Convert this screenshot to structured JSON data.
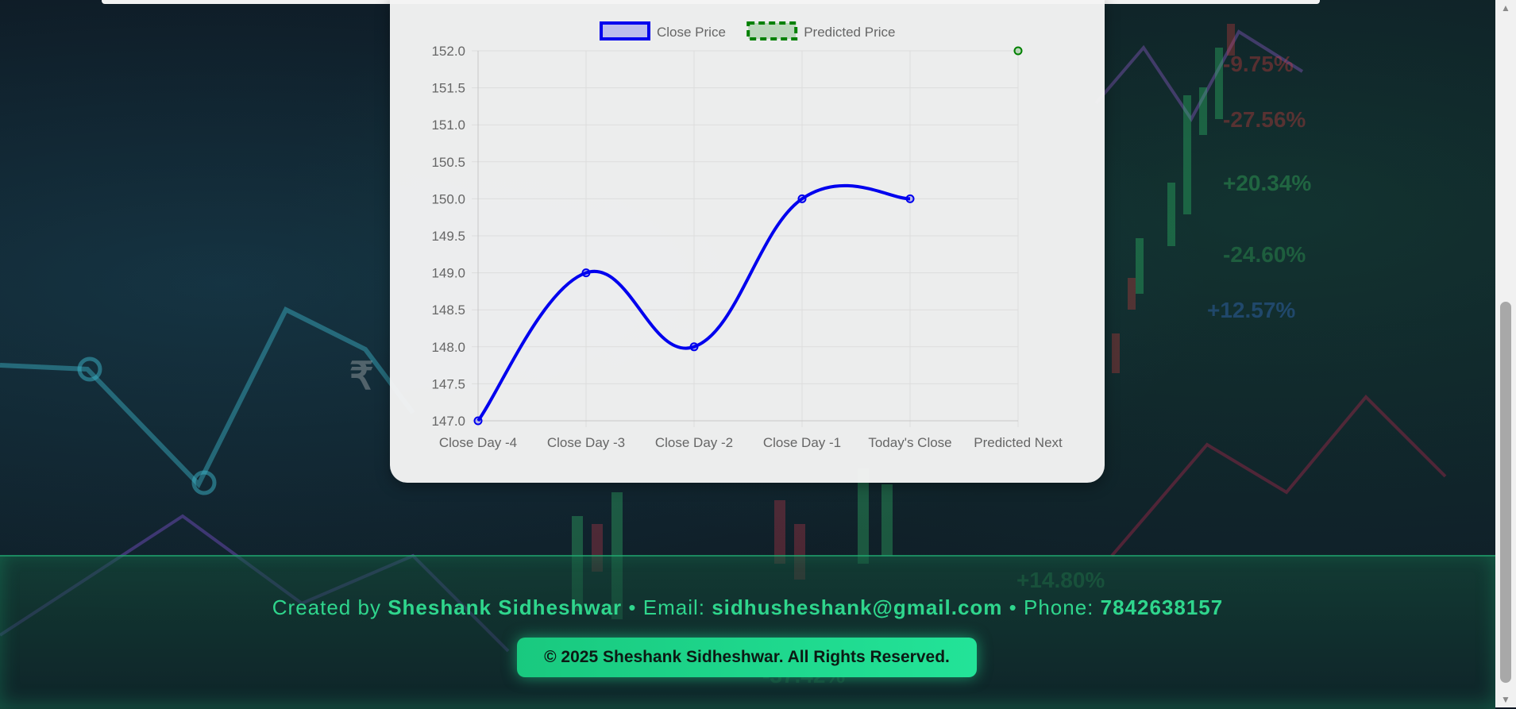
{
  "chart_data": {
    "type": "line",
    "categories": [
      "Close Day -4",
      "Close Day -3",
      "Close Day -2",
      "Close Day -1",
      "Today's Close",
      "Predicted Next"
    ],
    "series": [
      {
        "name": "Close Price",
        "values": [
          147.0,
          149.0,
          148.0,
          150.0,
          150.0,
          null
        ],
        "color": "#0000ee",
        "style": "solid"
      },
      {
        "name": "Predicted Price",
        "values": [
          null,
          null,
          null,
          null,
          null,
          152.0
        ],
        "color": "#008000",
        "style": "dashed"
      }
    ],
    "ylim": [
      147.0,
      152.0
    ],
    "yticks": [
      "152.0",
      "151.5",
      "151.0",
      "150.5",
      "150.0",
      "149.5",
      "149.0",
      "148.5",
      "148.0",
      "147.5",
      "147.0"
    ],
    "grid": true,
    "legend": "top-center",
    "title": "",
    "xlabel": "",
    "ylabel": ""
  },
  "footer": {
    "created_by_label": "Created by",
    "author": "Sheshank Sidheshwar",
    "email_label": "• Email:",
    "email": "sidhusheshank@gmail.com",
    "phone_label": "• Phone:",
    "phone": "7842638157",
    "copyright": "© 2025 Sheshank Sidheshwar. All Rights Reserved."
  }
}
